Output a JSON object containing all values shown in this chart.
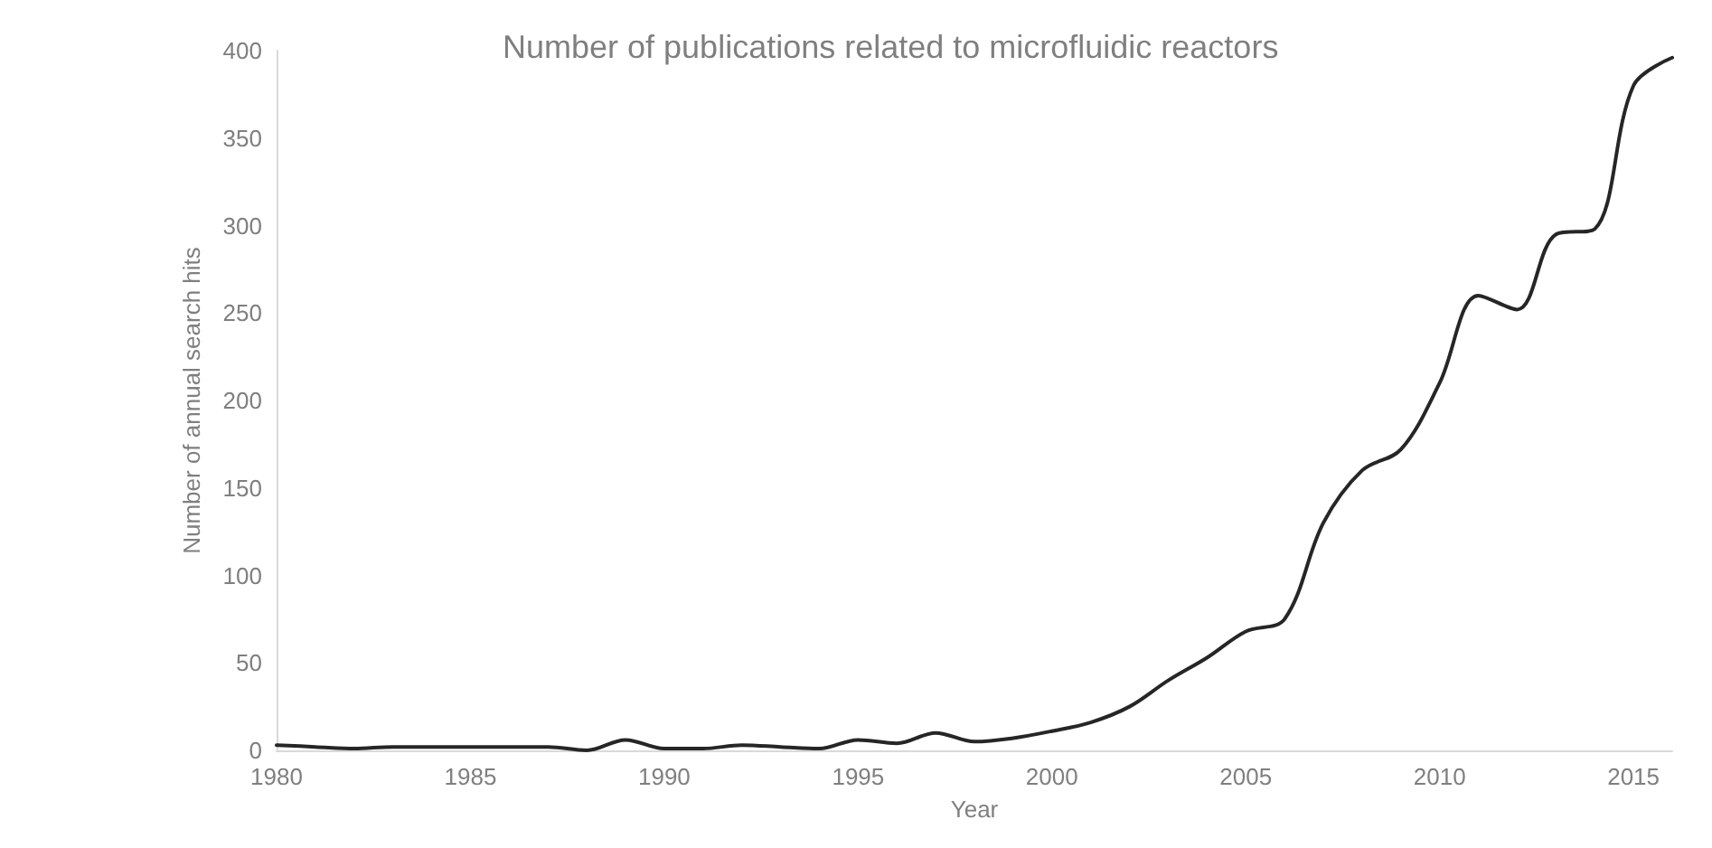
{
  "chart_data": {
    "type": "line",
    "title": "Number of publications related to microfluidic reactors",
    "xlabel": "Year",
    "ylabel": "Number of annual search hits",
    "x": [
      1980,
      1981,
      1982,
      1983,
      1984,
      1985,
      1986,
      1987,
      1988,
      1989,
      1990,
      1991,
      1992,
      1993,
      1994,
      1995,
      1996,
      1997,
      1998,
      1999,
      2000,
      2001,
      2002,
      2003,
      2004,
      2005,
      2006,
      2007,
      2008,
      2009,
      2010,
      2011,
      2012,
      2013,
      2014,
      2015,
      2016
    ],
    "series": [
      {
        "color": "#262626",
        "values": [
          3,
          2,
          1,
          2,
          2,
          2,
          2,
          2,
          0,
          6,
          1,
          1,
          3,
          2,
          1,
          6,
          4,
          10,
          5,
          7,
          11,
          16,
          25,
          40,
          53,
          68,
          75,
          130,
          160,
          172,
          210,
          260,
          252,
          295,
          298,
          380,
          396
        ]
      }
    ],
    "xlim": [
      1980,
      2016
    ],
    "xticks": [
      1980,
      1985,
      1990,
      1995,
      2000,
      2005,
      2010,
      2015
    ],
    "ylim": [
      0,
      400
    ],
    "yticks": [
      0,
      50,
      100,
      150,
      200,
      250,
      300,
      350,
      400
    ],
    "grid": false,
    "marker": "none",
    "line_style": "solid"
  }
}
